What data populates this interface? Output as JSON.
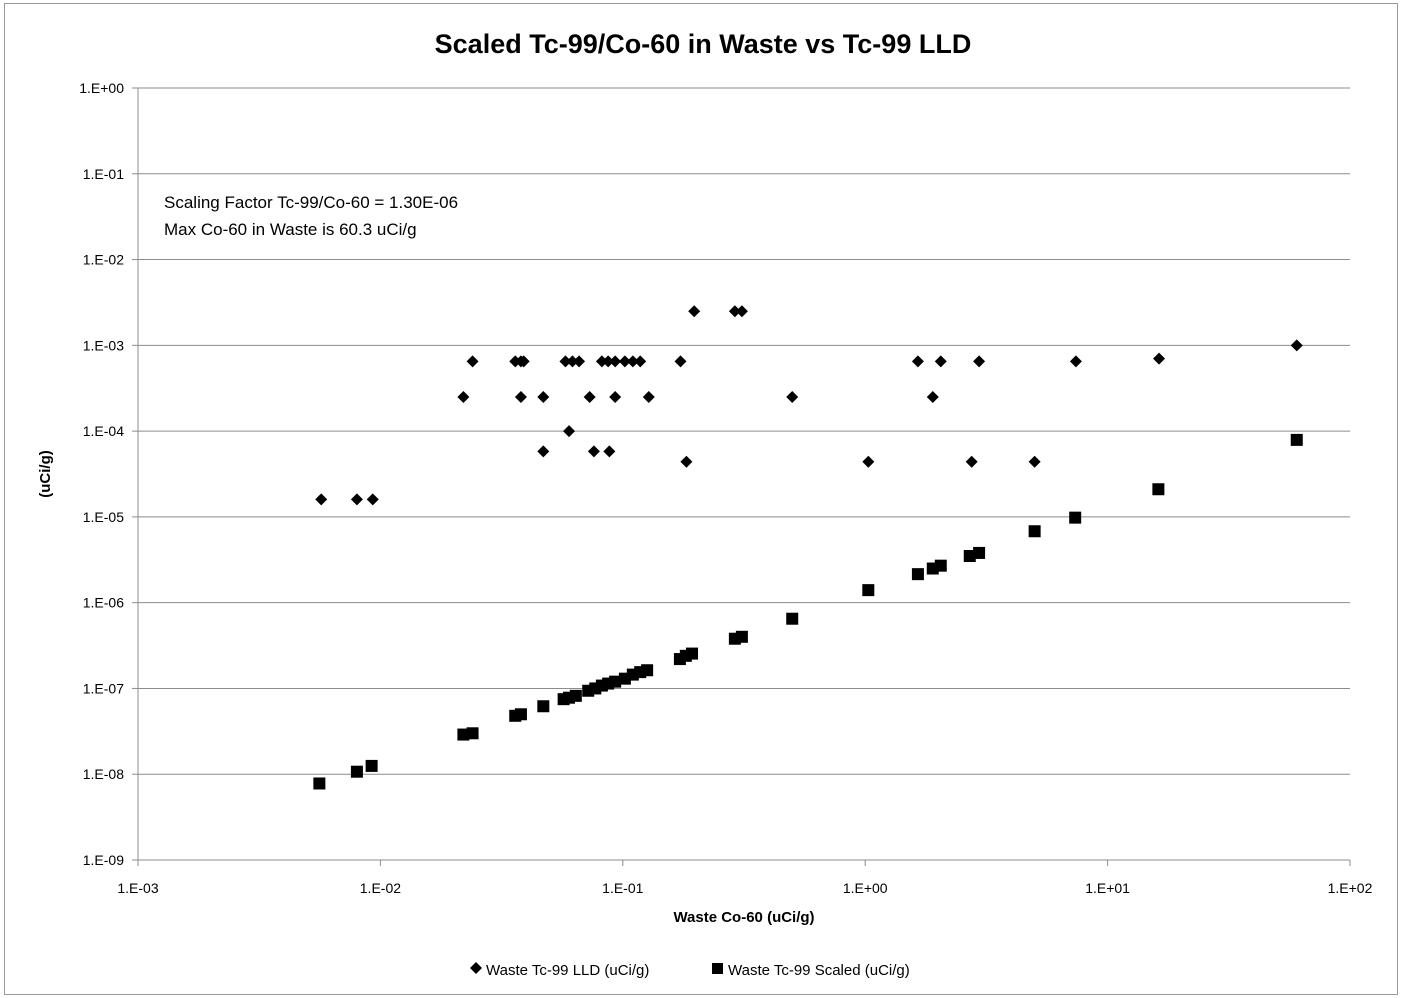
{
  "chart_data": {
    "type": "scatter",
    "title": "Scaled Tc-99/Co-60 in Waste vs Tc-99 LLD",
    "xlabel": "Waste Co-60 (uCi/g)",
    "ylabel": "(uCi/g)",
    "x_scale": "log",
    "y_scale": "log",
    "xlim": [
      0.001,
      100
    ],
    "ylim": [
      1e-09,
      1
    ],
    "grid": "horizontal major",
    "legend_position": "bottom",
    "x_ticks": [
      "1.E-03",
      "1.E-02",
      "1.E-01",
      "1.E+00",
      "1.E+01",
      "1.E+02"
    ],
    "y_ticks": [
      "1.E+00",
      "1.E-01",
      "1.E-02",
      "1.E-03",
      "1.E-04",
      "1.E-05",
      "1.E-06",
      "1.E-07",
      "1.E-08",
      "1.E-09"
    ],
    "annotations": [
      "Scaling Factor Tc-99/Co-60 = 1.30E-06",
      "Max Co-60 in Waste is  60.3 uCi/g"
    ],
    "series": [
      {
        "name": "Waste Tc-99 LLD (uCi/g)",
        "marker": "diamond",
        "color": "#000000",
        "points": [
          [
            0.0057,
            1.6e-05
          ],
          [
            0.008,
            1.6e-05
          ],
          [
            0.0093,
            1.6e-05
          ],
          [
            0.022,
            0.00025
          ],
          [
            0.024,
            0.00065
          ],
          [
            0.036,
            0.00065
          ],
          [
            0.038,
            0.00065
          ],
          [
            0.039,
            0.00065
          ],
          [
            0.038,
            0.00025
          ],
          [
            0.047,
            0.00025
          ],
          [
            0.047,
            5.8e-05
          ],
          [
            0.058,
            0.00065
          ],
          [
            0.062,
            0.00065
          ],
          [
            0.066,
            0.00065
          ],
          [
            0.06,
            0.0001
          ],
          [
            0.073,
            0.00025
          ],
          [
            0.076,
            5.8e-05
          ],
          [
            0.082,
            0.00065
          ],
          [
            0.087,
            0.00065
          ],
          [
            0.093,
            0.00065
          ],
          [
            0.093,
            0.00025
          ],
          [
            0.088,
            5.8e-05
          ],
          [
            0.102,
            0.00065
          ],
          [
            0.11,
            0.00065
          ],
          [
            0.118,
            0.00065
          ],
          [
            0.128,
            0.00025
          ],
          [
            0.173,
            0.00065
          ],
          [
            0.183,
            4.4e-05
          ],
          [
            0.197,
            0.0025
          ],
          [
            0.29,
            0.0025
          ],
          [
            0.31,
            0.0025
          ],
          [
            0.5,
            0.00025
          ],
          [
            1.03,
            4.4e-05
          ],
          [
            1.65,
            0.00065
          ],
          [
            1.9,
            0.00025
          ],
          [
            2.05,
            0.00065
          ],
          [
            2.75,
            4.4e-05
          ],
          [
            2.95,
            0.00065
          ],
          [
            5.0,
            4.4e-05
          ],
          [
            7.4,
            0.00065
          ],
          [
            16.3,
            0.0007
          ],
          [
            60.3,
            0.001
          ]
        ]
      },
      {
        "name": "Waste Tc-99 Scaled (uCi/g)",
        "marker": "square",
        "color": "#000000",
        "points": [
          [
            0.0056,
            7.8e-09
          ],
          [
            0.008,
            1.07e-08
          ],
          [
            0.0092,
            1.25e-08
          ],
          [
            0.022,
            2.9e-08
          ],
          [
            0.024,
            3e-08
          ],
          [
            0.036,
            4.8e-08
          ],
          [
            0.038,
            5e-08
          ],
          [
            0.047,
            6.2e-08
          ],
          [
            0.057,
            7.5e-08
          ],
          [
            0.06,
            7.8e-08
          ],
          [
            0.064,
            8.2e-08
          ],
          [
            0.072,
            9.4e-08
          ],
          [
            0.077,
            1e-07
          ],
          [
            0.082,
            1.08e-07
          ],
          [
            0.087,
            1.14e-07
          ],
          [
            0.093,
            1.2e-07
          ],
          [
            0.102,
            1.3e-07
          ],
          [
            0.11,
            1.45e-07
          ],
          [
            0.118,
            1.55e-07
          ],
          [
            0.126,
            1.63e-07
          ],
          [
            0.172,
            2.2e-07
          ],
          [
            0.182,
            2.4e-07
          ],
          [
            0.193,
            2.55e-07
          ],
          [
            0.29,
            3.8e-07
          ],
          [
            0.31,
            4e-07
          ],
          [
            0.5,
            6.5e-07
          ],
          [
            1.03,
            1.4e-06
          ],
          [
            1.65,
            2.15e-06
          ],
          [
            1.9,
            2.5e-06
          ],
          [
            2.05,
            2.7e-06
          ],
          [
            2.7,
            3.5e-06
          ],
          [
            2.95,
            3.8e-06
          ],
          [
            5.0,
            6.8e-06
          ],
          [
            7.35,
            9.8e-06
          ],
          [
            16.2,
            2.1e-05
          ],
          [
            60.3,
            7.9e-05
          ]
        ]
      }
    ]
  }
}
